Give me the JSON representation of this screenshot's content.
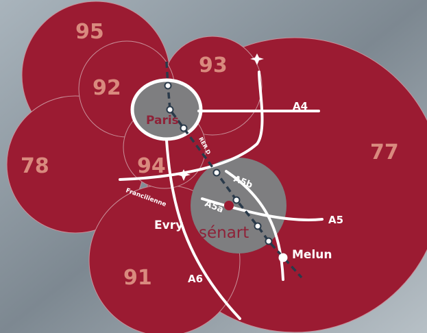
{
  "departments": [
    {
      "id": "95",
      "label": "95"
    },
    {
      "id": "93",
      "label": "93"
    },
    {
      "id": "92",
      "label": "92"
    },
    {
      "id": "77",
      "label": "77"
    },
    {
      "id": "78",
      "label": "78"
    },
    {
      "id": "94",
      "label": "94"
    },
    {
      "id": "91",
      "label": "91"
    }
  ],
  "cities": {
    "paris": "Paris",
    "evry": "Evry",
    "melun": "Melun",
    "senart": "sénart"
  },
  "roads": {
    "a4": "A4",
    "a5": "A5",
    "a5a": "A5a",
    "a5b": "A5b",
    "a6": "A6",
    "francilienne": "Francilienne",
    "rer_d": "RER D"
  },
  "icons": [
    "airplane-icon",
    "airplane-icon"
  ],
  "colors": {
    "region": "#9b1b32",
    "highlight": "#7e7e80",
    "label_dept": "#d98a7e",
    "road": "#ffffff",
    "rer_line": "#2a3a4a",
    "senart_text": "#8e2238",
    "background": "#8c99a3"
  }
}
